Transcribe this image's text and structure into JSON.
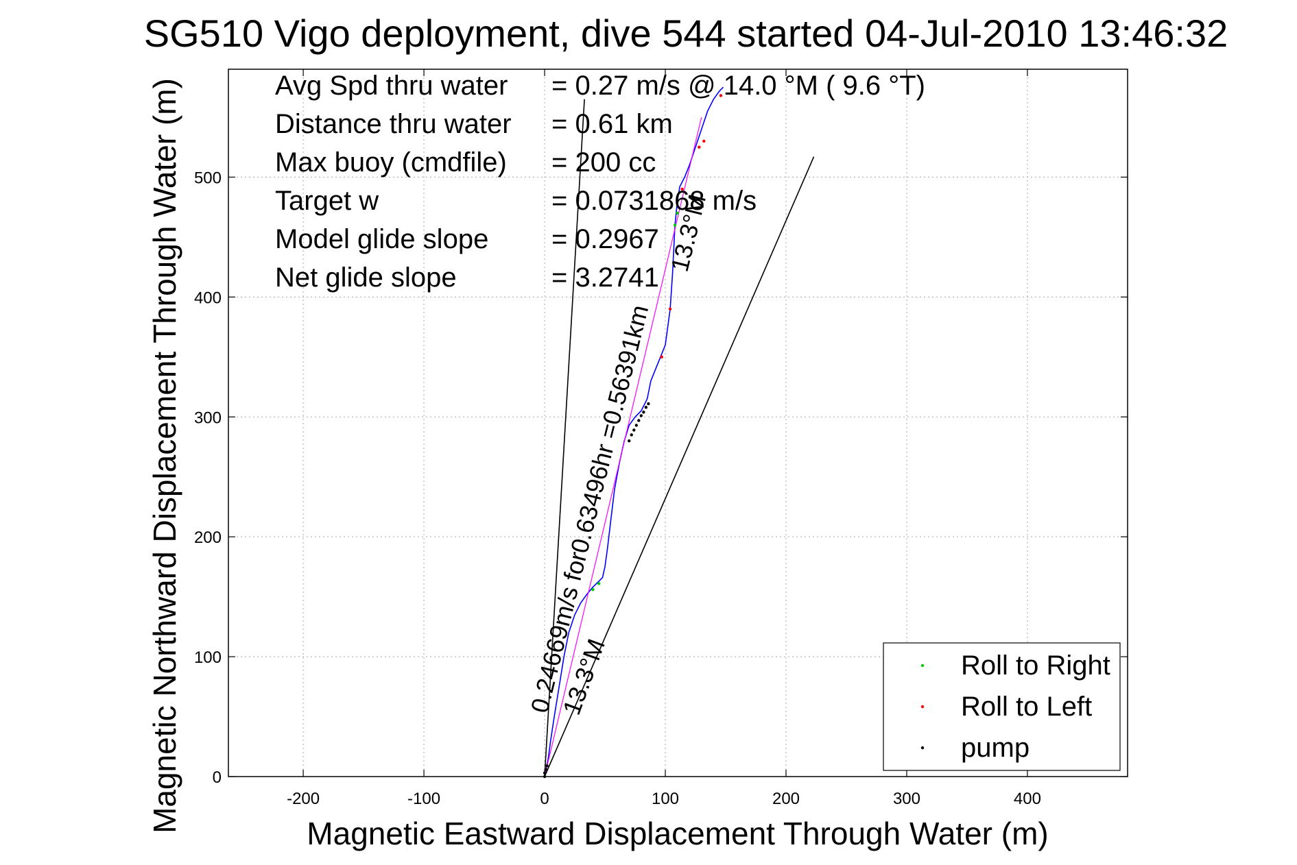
{
  "chart_data": {
    "type": "line",
    "title": "SG510 Vigo deployment, dive 544 started 04-Jul-2010 13:46:32",
    "xlabel": "Magnetic Eastward Displacement Through Water (m)",
    "ylabel": "Magnetic Northward Displacement Through Water (m)",
    "xlim": [
      -262,
      483
    ],
    "ylim": [
      0,
      590
    ],
    "grid": true,
    "xticks": [
      -200,
      -100,
      0,
      100,
      200,
      300,
      400
    ],
    "yticks": [
      0,
      100,
      200,
      300,
      400,
      500
    ],
    "info_lines": [
      {
        "label": "Avg Spd thru water",
        "value": "=  0.27 m/s @  14.0 °M (  9.6 °T)"
      },
      {
        "label": "Distance thru water",
        "value": "=  0.61 km"
      },
      {
        "label": "Max buoy (cmdfile)",
        "value": "= 200 cc"
      },
      {
        "label": "Target w",
        "value": "= 0.0731868 m/s"
      },
      {
        "label": "Model glide slope",
        "value": "= 0.2967"
      },
      {
        "label": "Net glide slope",
        "value": "= 3.2741"
      }
    ],
    "annotations": [
      {
        "text": "0.24669m/s for0.63496hr =0.56391km",
        "anchor": [
          2,
          52
        ],
        "angle_deg": -76
      },
      {
        "text": "13.3°M",
        "anchor": [
          28,
          50
        ],
        "angle_deg": -70
      },
      {
        "text": "13.3°M",
        "anchor": [
          118,
          420
        ],
        "angle_deg": -76
      }
    ],
    "series": [
      {
        "name": "track",
        "color": "#0000ff",
        "x": [
          0,
          1,
          3,
          5,
          8,
          12,
          16,
          20,
          25,
          30,
          35,
          40,
          45,
          48,
          50,
          52,
          55,
          58,
          62,
          66,
          70,
          75,
          80,
          85,
          88,
          92,
          96,
          100,
          104,
          106,
          108,
          110,
          112,
          116,
          120,
          125,
          130,
          135,
          140,
          145,
          148
        ],
        "y": [
          0,
          5,
          15,
          30,
          50,
          75,
          100,
          120,
          135,
          145,
          152,
          158,
          163,
          166,
          175,
          190,
          215,
          240,
          262,
          280,
          293,
          300,
          305,
          315,
          330,
          340,
          350,
          360,
          390,
          420,
          460,
          480,
          492,
          500,
          510,
          525,
          540,
          555,
          565,
          572,
          575
        ]
      },
      {
        "name": "centerline",
        "color": "#ff00ff",
        "x": [
          0,
          130
        ],
        "y": [
          0,
          550
        ]
      },
      {
        "name": "glide-lines",
        "color": "#000000",
        "lines": [
          {
            "x": [
              0,
              33
            ],
            "y": [
              0,
              565
            ]
          },
          {
            "x": [
              0,
              223
            ],
            "y": [
              0,
              517
            ]
          }
        ]
      },
      {
        "name": "Roll to Right",
        "color": "#00cc00",
        "marker": "dot",
        "x": [
          40,
          45,
          108,
          110
        ],
        "y": [
          156,
          161,
          460,
          470
        ]
      },
      {
        "name": "Roll to Left",
        "color": "#ff0000",
        "marker": "dot",
        "x": [
          97,
          104,
          114,
          128,
          132,
          146
        ],
        "y": [
          350,
          390,
          490,
          525,
          530,
          568
        ]
      },
      {
        "name": "pump",
        "color": "#000000",
        "marker": "dot",
        "x": [
          0,
          0,
          1,
          2,
          70,
          72,
          74,
          76,
          78,
          80,
          82,
          84,
          86
        ],
        "y": [
          0,
          3,
          6,
          9,
          280,
          285,
          289,
          293,
          297,
          301,
          304,
          308,
          311
        ]
      }
    ],
    "legend": {
      "placement": "bottom-right",
      "entries": [
        {
          "label": "Roll to Right",
          "color": "#00cc00"
        },
        {
          "label": "Roll to Left",
          "color": "#ff0000"
        },
        {
          "label": "pump",
          "color": "#000000"
        }
      ]
    }
  }
}
